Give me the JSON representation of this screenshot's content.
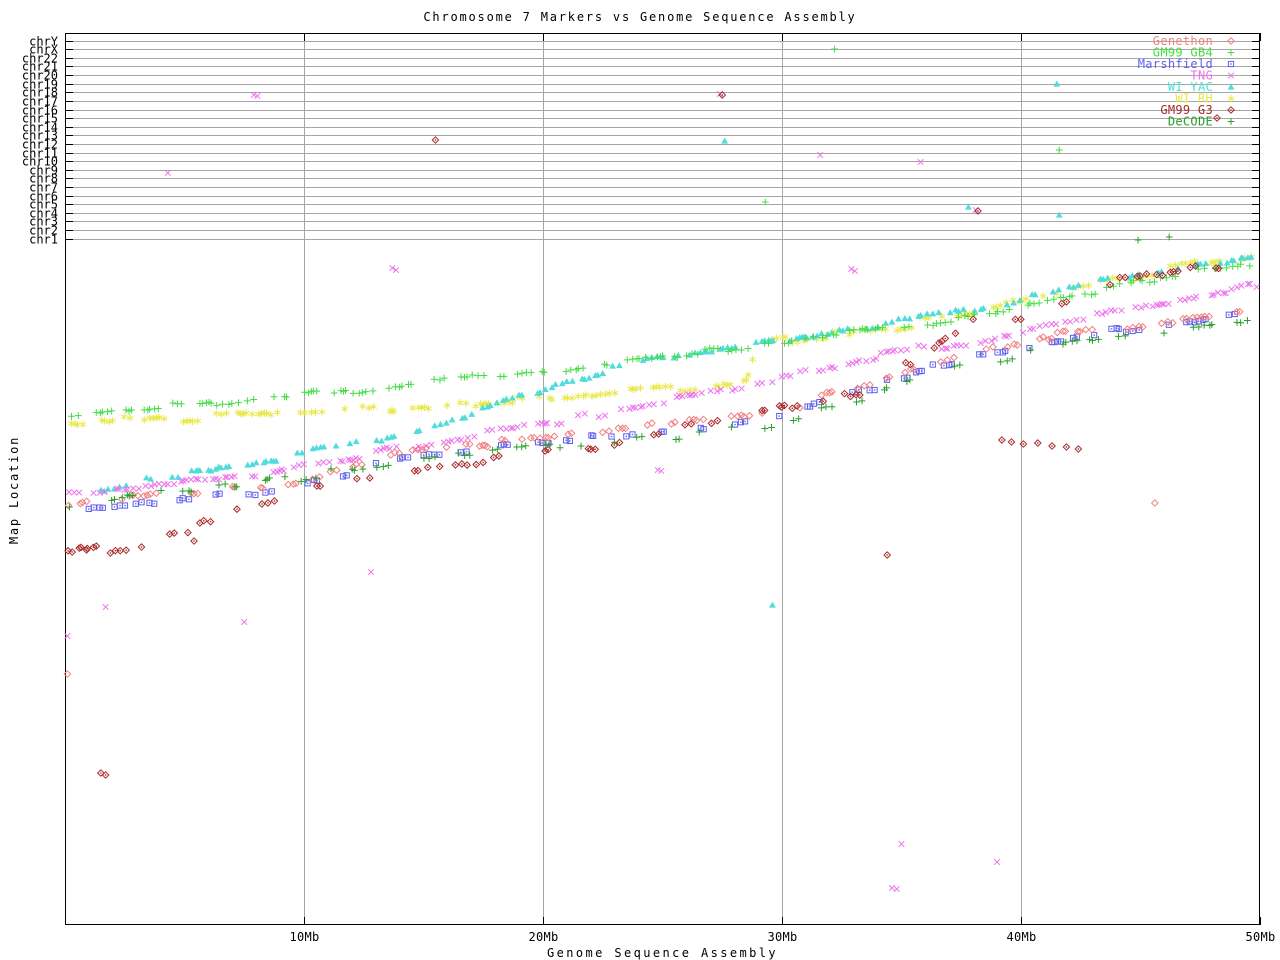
{
  "title": "Chromosome 7 Markers vs Genome Sequence Assembly",
  "axes": {
    "x": {
      "label": "Genome Sequence Assembly",
      "tick_labels": [
        "10Mb",
        "20Mb",
        "30Mb",
        "40Mb",
        "50Mb"
      ],
      "tick_mb": [
        10,
        20,
        30,
        40,
        50
      ],
      "range_mb": [
        0,
        50
      ]
    },
    "y": {
      "label": "Map Location",
      "categories": [
        "chrY",
        "chrX",
        "chr22",
        "chr21",
        "chr20",
        "chr19",
        "chr18",
        "chr17",
        "chr16",
        "chr15",
        "chr14",
        "chr13",
        "chr12",
        "chr11",
        "chr10",
        "chr9",
        "chr8",
        "chr7",
        "chr6",
        "chr5",
        "chr4",
        "chr3",
        "chr2",
        "chr1"
      ]
    }
  },
  "legend": {
    "position": "top-right",
    "entries": [
      {
        "label": "Genethon",
        "color": "#f08080",
        "marker": "diamond-open"
      },
      {
        "label": "GM99 GB4",
        "color": "#44dd44",
        "marker": "plus"
      },
      {
        "label": "Marshfield",
        "color": "#6060f0",
        "marker": "square-dot"
      },
      {
        "label": "TNG",
        "color": "#ee70ee",
        "marker": "cross"
      },
      {
        "label": "WI YAC",
        "color": "#50dcdc",
        "marker": "triangle"
      },
      {
        "label": "WI RH",
        "color": "#e8e848",
        "marker": "asterisk"
      },
      {
        "label": "GM99 G3",
        "color": "#a82828",
        "marker": "diamond-dot"
      },
      {
        "label": "DeCODE",
        "color": "#28a028",
        "marker": "plus"
      }
    ]
  },
  "layout_colors": {
    "background": "#ffffff",
    "grid": "#a6a6a6",
    "axis": "#000000"
  },
  "chart_data": {
    "type": "scatter",
    "title": "Chromosome 7 Markers vs Genome Sequence Assembly",
    "xlabel": "Genome Sequence Assembly",
    "ylabel": "Map Location",
    "x_units": "Mb",
    "x_range": [
      0,
      50
    ],
    "grid": true,
    "legend_position": "top-right",
    "y_axis_note": "Y axis lists chromosome bands chrY (top) to chr1; marker map locations lie below the chr1 band and are recorded here as vertical screen positions (px, 33=top border, 925=bottom border). Each series rises diagonally: map location increases with assembly position.",
    "series": [
      {
        "name": "WI RH",
        "color": "#e8e848",
        "marker": "asterisk",
        "run": 5,
        "gap": 0.8,
        "jitter": 4,
        "trend": [
          [
            0,
            422
          ],
          [
            4,
            419
          ],
          [
            8,
            416
          ],
          [
            12,
            410
          ],
          [
            16,
            403
          ],
          [
            20,
            397
          ],
          [
            23,
            393
          ],
          [
            26,
            388
          ],
          [
            28.5,
            384
          ],
          [
            29,
            344
          ],
          [
            31,
            337
          ],
          [
            33,
            331
          ],
          [
            35,
            325
          ],
          [
            37,
            317
          ],
          [
            39,
            309
          ],
          [
            40,
            300
          ],
          [
            42,
            290
          ],
          [
            44,
            281
          ],
          [
            46,
            271
          ],
          [
            48,
            262
          ],
          [
            50,
            254
          ]
        ],
        "outliers": []
      },
      {
        "name": "WI YAC",
        "color": "#50dcdc",
        "marker": "triangle",
        "run": 5,
        "gap": 0.8,
        "jitter": 3,
        "trend": [
          [
            1.5,
            490
          ],
          [
            3,
            483
          ],
          [
            5,
            474
          ],
          [
            7,
            467
          ],
          [
            9,
            459
          ],
          [
            11,
            449
          ],
          [
            13,
            439
          ],
          [
            15,
            427
          ],
          [
            17,
            414
          ],
          [
            18,
            406
          ],
          [
            19,
            398
          ],
          [
            20,
            389
          ],
          [
            21,
            382
          ],
          [
            22,
            376
          ],
          [
            23,
            369
          ],
          [
            24,
            363
          ],
          [
            26,
            355
          ],
          [
            28,
            348
          ],
          [
            30,
            341
          ],
          [
            32,
            333
          ],
          [
            34,
            326
          ],
          [
            36,
            317
          ],
          [
            38,
            308
          ],
          [
            40,
            298
          ],
          [
            42,
            287
          ],
          [
            44,
            279
          ],
          [
            46,
            271
          ],
          [
            48,
            265
          ],
          [
            50,
            259
          ]
        ],
        "outliers": [
          [
            41.5,
            84
          ],
          [
            27.6,
            141
          ],
          [
            37.8,
            207
          ],
          [
            41.6,
            215
          ],
          [
            29.6,
            605
          ]
        ]
      },
      {
        "name": "TNG",
        "color": "#ee70ee",
        "marker": "cross",
        "run": 6,
        "gap": 0.55,
        "jitter": 3,
        "trend": [
          [
            0,
            492
          ],
          [
            2,
            488
          ],
          [
            4,
            483
          ],
          [
            6,
            479
          ],
          [
            8,
            473
          ],
          [
            10,
            466
          ],
          [
            12,
            458
          ],
          [
            14,
            449
          ],
          [
            16,
            440
          ],
          [
            18,
            432
          ],
          [
            20,
            424
          ],
          [
            22,
            415
          ],
          [
            24,
            406
          ],
          [
            26,
            398
          ],
          [
            28,
            391
          ],
          [
            30,
            378
          ],
          [
            32,
            369
          ],
          [
            34,
            357
          ],
          [
            36,
            348
          ],
          [
            38,
            341
          ],
          [
            40,
            331
          ],
          [
            42,
            322
          ],
          [
            44,
            313
          ],
          [
            46,
            305
          ],
          [
            48,
            295
          ],
          [
            50,
            285
          ]
        ],
        "outliers": [
          [
            7.9,
            95
          ],
          [
            8.05,
            96
          ],
          [
            4.3,
            173
          ],
          [
            27.4,
            94
          ],
          [
            31.6,
            155
          ],
          [
            35.8,
            162
          ],
          [
            38.1,
            210
          ],
          [
            13.7,
            268
          ],
          [
            13.85,
            270
          ],
          [
            32.9,
            269
          ],
          [
            33.05,
            271
          ],
          [
            24.8,
            470
          ],
          [
            24.95,
            471
          ],
          [
            1.7,
            607
          ],
          [
            7.5,
            622
          ],
          [
            0.1,
            636
          ],
          [
            12.8,
            572
          ],
          [
            35.0,
            844
          ],
          [
            39.0,
            862
          ],
          [
            34.6,
            888
          ],
          [
            34.8,
            889
          ]
        ]
      },
      {
        "name": "GM99 GB4",
        "color": "#44dd44",
        "marker": "plus",
        "run": 5,
        "gap": 0.7,
        "jitter": 3,
        "trend": [
          [
            0,
            415
          ],
          [
            4,
            407
          ],
          [
            8,
            400
          ],
          [
            12,
            391
          ],
          [
            16,
            381
          ],
          [
            20,
            371
          ],
          [
            24,
            360
          ],
          [
            28,
            348
          ],
          [
            30,
            343
          ],
          [
            32,
            336
          ],
          [
            34,
            330
          ],
          [
            36,
            323
          ],
          [
            38,
            316
          ],
          [
            40,
            304
          ],
          [
            42,
            295
          ],
          [
            44,
            287
          ],
          [
            46,
            277
          ],
          [
            48,
            269
          ],
          [
            50,
            262
          ]
        ],
        "outliers": [
          [
            32.2,
            49
          ],
          [
            41.6,
            150
          ],
          [
            29.3,
            202
          ]
        ]
      },
      {
        "name": "Marshfield",
        "color": "#6060f0",
        "marker": "square-dot",
        "run": 3,
        "gap": 1.3,
        "jitter": 3,
        "trend": [
          [
            0,
            509
          ],
          [
            2,
            505
          ],
          [
            4,
            501
          ],
          [
            6,
            497
          ],
          [
            8,
            492
          ],
          [
            10,
            485
          ],
          [
            12,
            472
          ],
          [
            14,
            459
          ],
          [
            16,
            453
          ],
          [
            18,
            448
          ],
          [
            20,
            444
          ],
          [
            22,
            438
          ],
          [
            24,
            433
          ],
          [
            26,
            428
          ],
          [
            28,
            423
          ],
          [
            30,
            417
          ],
          [
            32,
            400
          ],
          [
            34,
            386
          ],
          [
            36,
            369
          ],
          [
            38,
            358
          ],
          [
            40,
            350
          ],
          [
            42,
            337
          ],
          [
            44,
            332
          ],
          [
            46,
            327
          ],
          [
            48,
            320
          ],
          [
            50,
            313
          ]
        ],
        "outliers": []
      },
      {
        "name": "Genethon",
        "color": "#f08080",
        "marker": "diamond-open",
        "run": 3,
        "gap": 1.3,
        "jitter": 3,
        "trend": [
          [
            0,
            505
          ],
          [
            2,
            500
          ],
          [
            4,
            496
          ],
          [
            6,
            492
          ],
          [
            8,
            487
          ],
          [
            10,
            480
          ],
          [
            12,
            467
          ],
          [
            14,
            454
          ],
          [
            16,
            448
          ],
          [
            18,
            443
          ],
          [
            20,
            439
          ],
          [
            22,
            433
          ],
          [
            24,
            428
          ],
          [
            26,
            423
          ],
          [
            28,
            418
          ],
          [
            30,
            412
          ],
          [
            32,
            395
          ],
          [
            34,
            381
          ],
          [
            36,
            364
          ],
          [
            38,
            353
          ],
          [
            40,
            345
          ],
          [
            42,
            332
          ],
          [
            44,
            327
          ],
          [
            46,
            322
          ],
          [
            48,
            315
          ],
          [
            50,
            308
          ]
        ],
        "outliers": [
          [
            0.1,
            674
          ],
          [
            45.6,
            503
          ]
        ]
      },
      {
        "name": "GM99 G3",
        "color": "#a82828",
        "marker": "diamond-dot",
        "run": 2,
        "gap": 1.8,
        "jitter": 4,
        "trend": [
          [
            0,
            551
          ],
          [
            2,
            549
          ],
          [
            4,
            540
          ],
          [
            6,
            522
          ],
          [
            8,
            508
          ],
          [
            10,
            493
          ],
          [
            12,
            481
          ],
          [
            14,
            472
          ],
          [
            16,
            465
          ],
          [
            18,
            458
          ],
          [
            20,
            452
          ],
          [
            22,
            445
          ],
          [
            24,
            437
          ],
          [
            26,
            429
          ],
          [
            28,
            419
          ],
          [
            30,
            410
          ],
          [
            32,
            397
          ],
          [
            34,
            387
          ],
          [
            36,
            350
          ],
          [
            38,
            322
          ],
          [
            40,
            316
          ],
          [
            42,
            300
          ],
          [
            44,
            281
          ],
          [
            46,
            272
          ],
          [
            48,
            266
          ],
          [
            50,
            261
          ]
        ],
        "outliers": [
          [
            15.5,
            140
          ],
          [
            27.5,
            95
          ],
          [
            38.2,
            211
          ],
          [
            34.4,
            555
          ],
          [
            1.5,
            773
          ],
          [
            1.7,
            775
          ],
          [
            48.2,
            118
          ],
          [
            39.2,
            440
          ],
          [
            39.6,
            442
          ],
          [
            40.1,
            444
          ],
          [
            40.7,
            443
          ],
          [
            41.3,
            446
          ],
          [
            41.9,
            447
          ],
          [
            42.4,
            449
          ],
          [
            5.4,
            541
          ],
          [
            0.3,
            552
          ],
          [
            0.9,
            550
          ],
          [
            1.9,
            553
          ],
          [
            3.2,
            547
          ]
        ]
      },
      {
        "name": "DeCODE",
        "color": "#28a028",
        "marker": "plus",
        "run": 2,
        "gap": 1.7,
        "jitter": 4,
        "trend": [
          [
            0,
            506
          ],
          [
            2,
            500
          ],
          [
            4,
            494
          ],
          [
            6,
            489
          ],
          [
            8,
            483
          ],
          [
            10,
            477
          ],
          [
            12,
            468
          ],
          [
            14,
            461
          ],
          [
            16,
            456
          ],
          [
            18,
            451
          ],
          [
            20,
            448
          ],
          [
            22,
            443
          ],
          [
            24,
            439
          ],
          [
            26,
            435
          ],
          [
            28,
            429
          ],
          [
            30,
            423
          ],
          [
            32,
            408
          ],
          [
            34,
            394
          ],
          [
            36,
            377
          ],
          [
            38,
            364
          ],
          [
            40,
            354
          ],
          [
            42,
            341
          ],
          [
            44,
            335
          ],
          [
            46,
            329
          ],
          [
            48,
            323
          ],
          [
            50,
            317
          ]
        ],
        "outliers": [
          [
            44.9,
            240
          ],
          [
            46.2,
            237
          ]
        ]
      }
    ]
  }
}
